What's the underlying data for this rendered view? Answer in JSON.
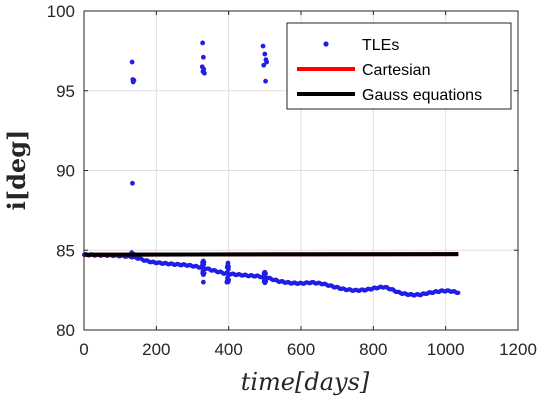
{
  "chart_data": {
    "type": "scatter",
    "xlabel": "time[days]",
    "ylabel": "i[deg]",
    "xlim": [
      0,
      1200
    ],
    "ylim": [
      80,
      100
    ],
    "xticks": [
      0,
      200,
      400,
      600,
      800,
      1000,
      1200
    ],
    "yticks": [
      80,
      85,
      90,
      95,
      100
    ],
    "x_tick_labels": [
      "0",
      "200",
      "400",
      "600",
      "800",
      "1000",
      "1200"
    ],
    "y_tick_labels": [
      "80",
      "85",
      "90",
      "95",
      "100"
    ],
    "grid": true,
    "legend_position": "top-right",
    "colors": {
      "tles": "#1f1fe6",
      "cartesian": "#ff0000",
      "gauss": "#000000"
    },
    "series": [
      {
        "name": "TLEs",
        "style": "markers",
        "trend": [
          [
            0,
            84.72
          ],
          [
            40,
            84.7
          ],
          [
            80,
            84.68
          ],
          [
            110,
            84.64
          ],
          [
            130,
            84.6
          ],
          [
            150,
            84.5
          ],
          [
            170,
            84.35
          ],
          [
            190,
            84.25
          ],
          [
            210,
            84.2
          ],
          [
            250,
            84.12
          ],
          [
            280,
            84.08
          ],
          [
            300,
            84.02
          ],
          [
            330,
            83.9
          ],
          [
            360,
            83.72
          ],
          [
            390,
            83.55
          ],
          [
            420,
            83.48
          ],
          [
            450,
            83.42
          ],
          [
            480,
            83.38
          ],
          [
            510,
            83.25
          ],
          [
            540,
            83.05
          ],
          [
            570,
            82.95
          ],
          [
            600,
            82.92
          ],
          [
            630,
            82.98
          ],
          [
            660,
            82.9
          ],
          [
            690,
            82.72
          ],
          [
            720,
            82.55
          ],
          [
            750,
            82.48
          ],
          [
            780,
            82.52
          ],
          [
            810,
            82.65
          ],
          [
            830,
            82.7
          ],
          [
            850,
            82.55
          ],
          [
            870,
            82.35
          ],
          [
            890,
            82.25
          ],
          [
            910,
            82.2
          ],
          [
            930,
            82.22
          ],
          [
            960,
            82.35
          ],
          [
            990,
            82.45
          ],
          [
            1010,
            82.45
          ],
          [
            1035,
            82.35
          ]
        ],
        "outliers": [
          [
            133,
            96.8
          ],
          [
            135,
            95.7
          ],
          [
            136,
            95.55
          ],
          [
            138,
            95.65
          ],
          [
            134,
            89.2
          ],
          [
            132,
            84.85
          ],
          [
            138,
            84.75
          ],
          [
            328,
            98.0
          ],
          [
            330,
            97.1
          ],
          [
            327,
            96.5
          ],
          [
            329,
            96.2
          ],
          [
            331,
            96.35
          ],
          [
            333,
            96.1
          ],
          [
            326,
            84.0
          ],
          [
            330,
            83.0
          ],
          [
            495,
            97.8
          ],
          [
            500,
            97.3
          ],
          [
            503,
            96.95
          ],
          [
            497,
            96.6
          ],
          [
            505,
            96.8
          ],
          [
            502,
            95.6
          ],
          [
            398,
            84.2
          ],
          [
            395,
            83.0
          ]
        ]
      },
      {
        "name": "Cartesian",
        "style": "line",
        "points": [
          [
            0,
            84.72
          ],
          [
            1035,
            84.76
          ]
        ]
      },
      {
        "name": "Gauss equations",
        "style": "line",
        "points": [
          [
            0,
            84.72
          ],
          [
            1035,
            84.76
          ]
        ]
      }
    ]
  }
}
